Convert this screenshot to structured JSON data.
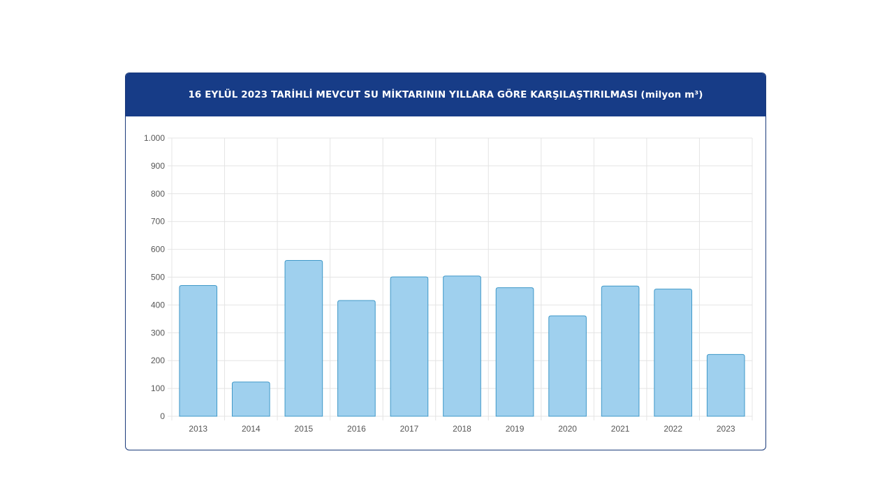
{
  "header": {
    "title": "16 EYLÜL 2023 TARİHLİ MEVCUT SU MİKTARININ YILLARA GÖRE KARŞILAŞTIRILMASI (milyon m³)"
  },
  "chart_data": {
    "type": "bar",
    "title": "16 EYLÜL 2023 TARİHLİ MEVCUT SU MİKTARININ YILLARA GÖRE KARŞILAŞTIRILMASI (milyon m³)",
    "categories": [
      "2013",
      "2014",
      "2015",
      "2016",
      "2017",
      "2018",
      "2019",
      "2020",
      "2021",
      "2022",
      "2023"
    ],
    "values": [
      470,
      123,
      560,
      416,
      501,
      504,
      462,
      361,
      468,
      457,
      222
    ],
    "ylim": [
      0,
      1000
    ],
    "yticks": [
      0,
      100,
      200,
      300,
      400,
      500,
      600,
      700,
      800,
      900,
      1000
    ],
    "ytick_labels": [
      "0",
      "100",
      "200",
      "300",
      "400",
      "500",
      "600",
      "700",
      "800",
      "900",
      "1.000"
    ],
    "xlabel": "",
    "ylabel": "",
    "grid": true,
    "colors": {
      "bar_fill": "#9fd0ee",
      "bar_stroke": "#3f98c8",
      "grid": "#e4e4e4",
      "header_bg": "#173c87"
    }
  }
}
